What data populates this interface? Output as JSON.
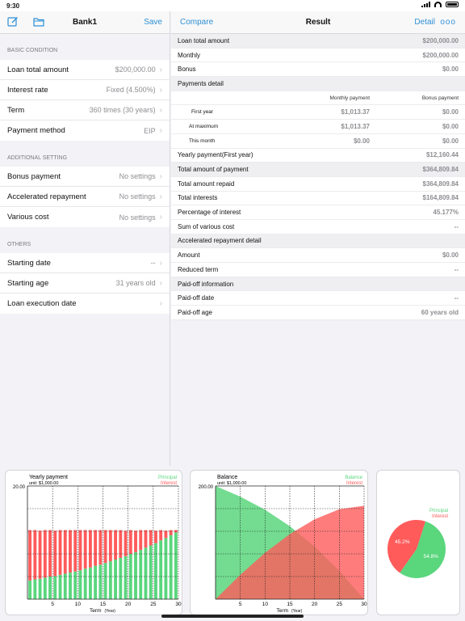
{
  "status": {
    "time": "9:30"
  },
  "left": {
    "title": "Bank1",
    "save_label": "Save",
    "sections": [
      {
        "header": "BASIC CONDITION",
        "rows": [
          {
            "label": "Loan total amount",
            "value": "$200,000.00"
          },
          {
            "label": "Interest rate",
            "value": "Fixed (4.500%)"
          },
          {
            "label": "Term",
            "value": "360 times (30 years)"
          },
          {
            "label": "Payment method",
            "value": "EIP"
          }
        ]
      },
      {
        "header": "ADDITIONAL SETTING",
        "rows": [
          {
            "label": "Bonus payment",
            "value": "No settings"
          },
          {
            "label": "Accelerated repayment",
            "value": "No settings"
          },
          {
            "label": "Various cost",
            "value": "No settings"
          }
        ]
      },
      {
        "header": "OTHERS",
        "rows": [
          {
            "label": "Starting date",
            "value": "--"
          },
          {
            "label": "Starting age",
            "value": "31 years old"
          },
          {
            "label": "Loan execution date",
            "value": ""
          }
        ]
      }
    ]
  },
  "right": {
    "compare_label": "Compare",
    "title": "Result",
    "detail_label": "Detail",
    "more_label": "ooo",
    "top_rows": [
      {
        "label": "Loan total amount",
        "value": "$200,000.00",
        "shade": true
      },
      {
        "label": "Monthly",
        "value": "$200,000.00",
        "shade": false
      },
      {
        "label": "Bonus",
        "value": "$0.00",
        "shade": false
      }
    ],
    "payments_detail": {
      "header": "Payments detail",
      "col_monthly": "Monthly payment",
      "col_bonus": "Bonus payment",
      "rows": [
        {
          "label": "First year",
          "monthly": "$1,013.37",
          "bonus": "$0.00"
        },
        {
          "label": "At maximum",
          "monthly": "$1,013.37",
          "bonus": "$0.00"
        },
        {
          "label": "This month",
          "monthly": "$0.00",
          "bonus": "$0.00"
        }
      ]
    },
    "mid_rows": [
      {
        "label": "Yearly payment(First year)",
        "value": "$12,160.44",
        "shade": false
      },
      {
        "label": "Total amount of payment",
        "value": "$364,809.84",
        "shade": true
      },
      {
        "label": "Total amount repaid",
        "value": "$364,809.84",
        "shade": false
      },
      {
        "label": "Total interests",
        "value": "$164,809.84",
        "shade": false
      },
      {
        "label": "Percentage of interest",
        "value": "45.177%",
        "shade": false
      },
      {
        "label": "Sum of various cost",
        "value": "--",
        "shade": false
      }
    ],
    "accel_header": "Accelerated repayment detail",
    "accel_rows": [
      {
        "label": "Amount",
        "value": "$0.00"
      },
      {
        "label": "Reduced term",
        "value": "--"
      }
    ],
    "paidoff_header": "Paid-off information",
    "paidoff_rows": [
      {
        "label": "Paid-off date",
        "value": "--"
      },
      {
        "label": "Paid-off age",
        "value": "60 years old"
      }
    ]
  },
  "colors": {
    "principal": "#5ad67d",
    "interest": "#ff5b5b",
    "accent": "#2d8fd6"
  },
  "chart_data": [
    {
      "type": "bar",
      "title": "Yearly payment",
      "unit": "unit: $1,000.00",
      "ymax_label": "20.00",
      "ylim": [
        0,
        20
      ],
      "xlabel": "Term",
      "xunit": "(Year)",
      "x_ticks": [
        "5",
        "10",
        "15",
        "20",
        "25",
        "30"
      ],
      "legend": [
        "Principal",
        "Interest"
      ],
      "categories": [
        1,
        2,
        3,
        4,
        5,
        6,
        7,
        8,
        9,
        10,
        11,
        12,
        13,
        14,
        15,
        16,
        17,
        18,
        19,
        20,
        21,
        22,
        23,
        24,
        25,
        26,
        27,
        28,
        29,
        30
      ],
      "series": [
        {
          "name": "Principal",
          "values": [
            3.3,
            3.5,
            3.6,
            3.8,
            4.0,
            4.1,
            4.3,
            4.5,
            4.7,
            4.9,
            5.1,
            5.4,
            5.6,
            5.9,
            6.1,
            6.4,
            6.7,
            7.0,
            7.3,
            7.6,
            8.0,
            8.3,
            8.7,
            9.1,
            9.5,
            9.9,
            10.4,
            10.8,
            11.3,
            11.8
          ]
        },
        {
          "name": "Interest",
          "values": [
            8.9,
            8.7,
            8.5,
            8.4,
            8.2,
            8.0,
            7.9,
            7.7,
            7.5,
            7.3,
            7.1,
            6.8,
            6.6,
            6.3,
            6.1,
            5.8,
            5.5,
            5.2,
            4.9,
            4.5,
            4.2,
            3.8,
            3.5,
            3.1,
            2.7,
            2.2,
            1.8,
            1.3,
            0.9,
            0.4
          ]
        }
      ]
    },
    {
      "type": "area",
      "title": "Balance",
      "unit": "unit: $1,000.00",
      "ymax_label": "200.00",
      "ylim": [
        0,
        200
      ],
      "xlabel": "Term",
      "xunit": "(Year)",
      "x_ticks": [
        "5",
        "10",
        "15",
        "20",
        "25",
        "30"
      ],
      "legend": [
        "Balance",
        "Interest"
      ],
      "x": [
        0,
        5,
        10,
        15,
        20,
        25,
        30
      ],
      "series": [
        {
          "name": "Balance",
          "values": [
            200,
            181,
            158,
            129,
            93,
            50,
            0
          ]
        },
        {
          "name": "Interest",
          "values": [
            0,
            43,
            82,
            115,
            141,
            159,
            165
          ]
        }
      ]
    },
    {
      "type": "pie",
      "legend": [
        "Principal",
        "Interest"
      ],
      "slices": [
        {
          "name": "Principal",
          "value": 54.8,
          "label": "54.8%"
        },
        {
          "name": "Interest",
          "value": 45.2,
          "label": "45.2%"
        }
      ]
    }
  ]
}
